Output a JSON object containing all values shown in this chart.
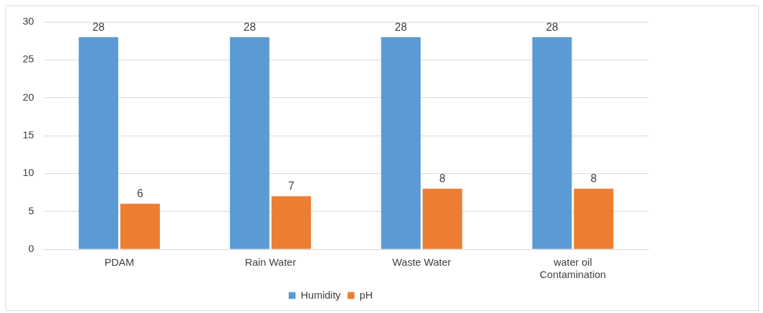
{
  "chart_data": {
    "type": "bar",
    "categories": [
      "PDAM",
      "Rain Water",
      "Waste Water",
      "water oil Contamination"
    ],
    "series": [
      {
        "name": "Humidity",
        "color": "#5b9bd5",
        "values": [
          28,
          28,
          28,
          28
        ]
      },
      {
        "name": "pH",
        "color": "#ed7d31",
        "values": [
          6,
          7,
          8,
          8
        ]
      }
    ],
    "ylim": [
      0,
      30
    ],
    "yticks": [
      0,
      5,
      10,
      15,
      20,
      25,
      30
    ],
    "grid": "y",
    "legend": "bottom",
    "data_labels": true
  }
}
